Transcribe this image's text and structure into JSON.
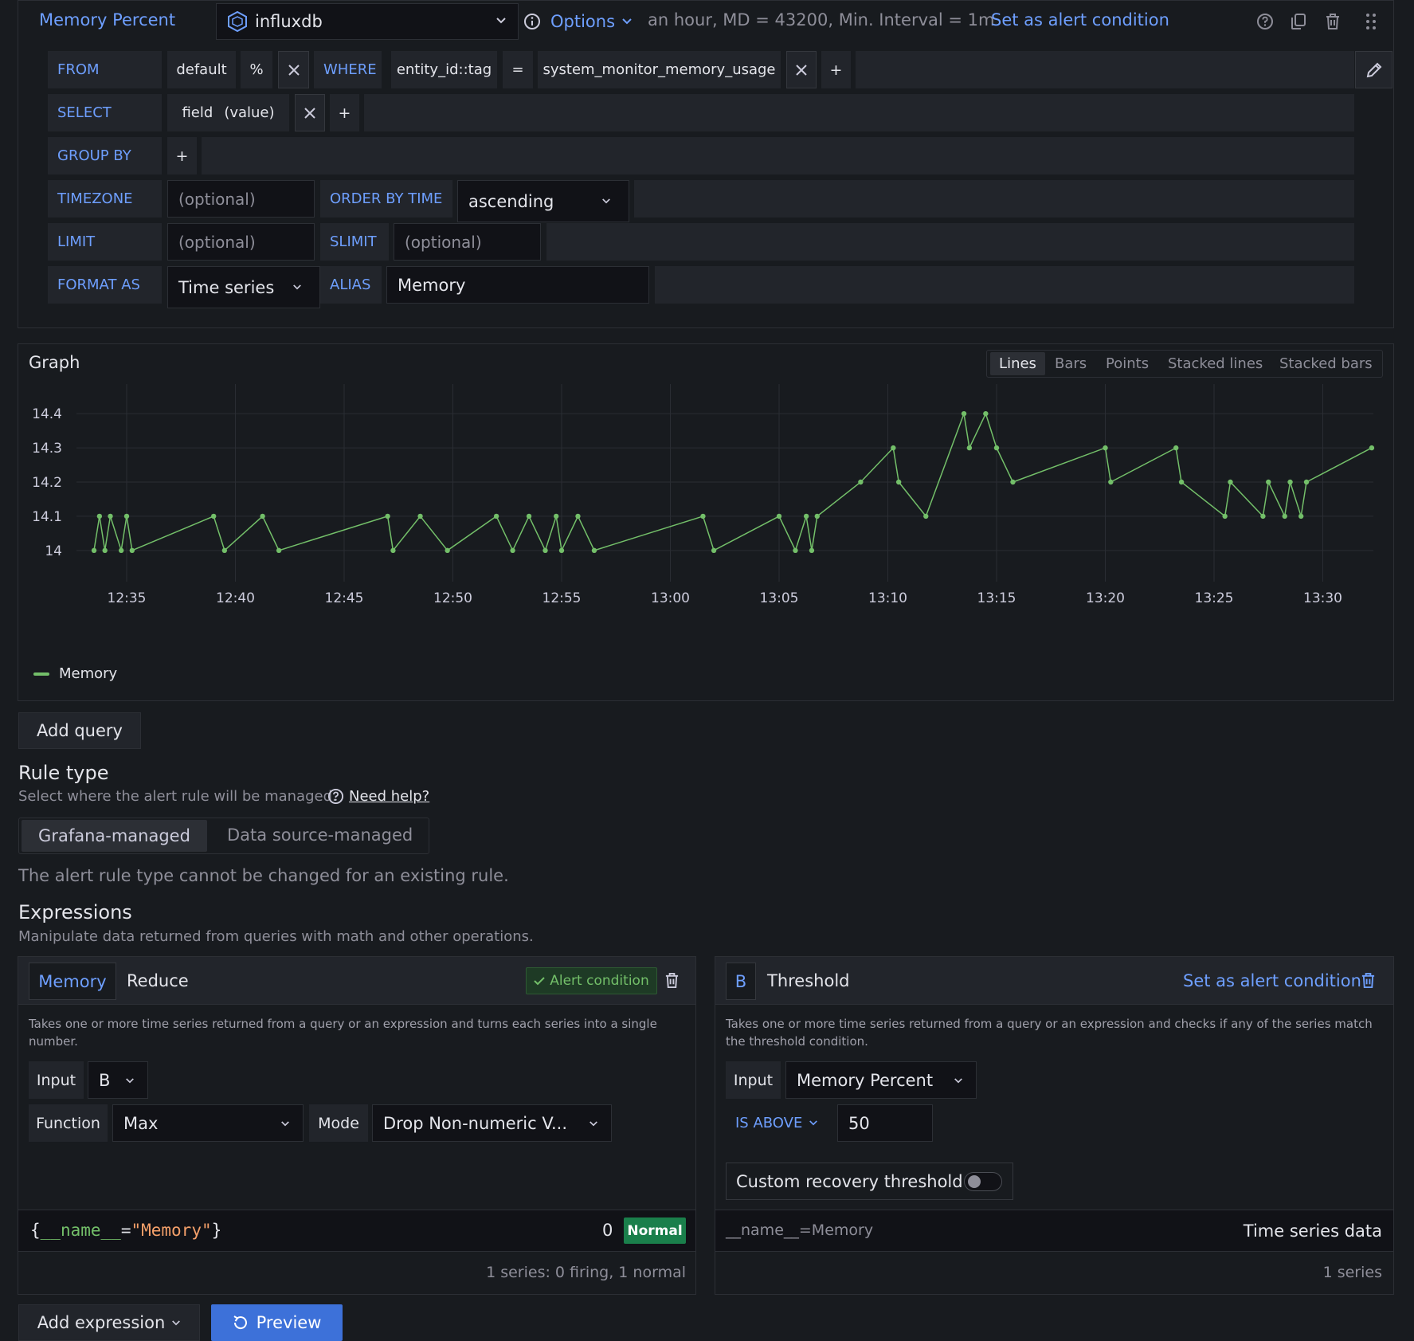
{
  "query": {
    "name": "Memory Percent",
    "datasource": "influxdb",
    "options_label": "Options",
    "options_summary": "an hour, MD = 43200, Min. Interval = 1m",
    "set_alert_label": "Set as alert condition",
    "from_label": "FROM",
    "from_policy": "default",
    "from_measurement": "%",
    "where_label": "WHERE",
    "where_key": "entity_id::tag",
    "where_op": "=",
    "where_value": "system_monitor_memory_usage",
    "plus": "+",
    "select_label": "SELECT",
    "select_field": "field",
    "select_value": "(value)",
    "groupby_label": "GROUP BY",
    "timezone_label": "TIMEZONE",
    "timezone_placeholder": "(optional)",
    "orderby_label": "ORDER BY TIME",
    "orderby_value": "ascending",
    "limit_label": "LIMIT",
    "limit_placeholder": "(optional)",
    "slimit_label": "SLIMIT",
    "slimit_placeholder": "(optional)",
    "format_label": "FORMAT AS",
    "format_value": "Time series",
    "alias_label": "ALIAS",
    "alias_value": "Memory"
  },
  "graph": {
    "title": "Graph",
    "modes": [
      "Lines",
      "Bars",
      "Points",
      "Stacked lines",
      "Stacked bars"
    ],
    "active_mode": "Lines",
    "legend": "Memory"
  },
  "chart_data": {
    "type": "line",
    "x_ticks": [
      "12:35",
      "12:40",
      "12:45",
      "12:50",
      "12:55",
      "13:00",
      "13:05",
      "13:10",
      "13:15",
      "13:20",
      "13:25",
      "13:30"
    ],
    "y_ticks": [
      "14",
      "14.1",
      "14.2",
      "14.3",
      "14.4"
    ],
    "ylim": [
      13.96,
      14.44
    ],
    "grid": true,
    "legend_position": "bottom-left",
    "series": [
      {
        "name": "Memory",
        "color": "#73bf69",
        "points": [
          [
            "12:33:30",
            14.0
          ],
          [
            "12:33:45",
            14.1
          ],
          [
            "12:34:00",
            14.0
          ],
          [
            "12:34:15",
            14.1
          ],
          [
            "12:34:45",
            14.0
          ],
          [
            "12:35:00",
            14.1
          ],
          [
            "12:35:15",
            14.0
          ],
          [
            "12:39:00",
            14.1
          ],
          [
            "12:39:30",
            14.0
          ],
          [
            "12:41:15",
            14.1
          ],
          [
            "12:42:00",
            14.0
          ],
          [
            "12:47:00",
            14.1
          ],
          [
            "12:47:15",
            14.0
          ],
          [
            "12:48:30",
            14.1
          ],
          [
            "12:49:45",
            14.0
          ],
          [
            "12:52:00",
            14.1
          ],
          [
            "12:52:45",
            14.0
          ],
          [
            "12:53:30",
            14.1
          ],
          [
            "12:54:15",
            14.0
          ],
          [
            "12:54:45",
            14.1
          ],
          [
            "12:55:00",
            14.0
          ],
          [
            "12:55:45",
            14.1
          ],
          [
            "12:56:30",
            14.0
          ],
          [
            "13:01:30",
            14.1
          ],
          [
            "13:02:00",
            14.0
          ],
          [
            "13:05:00",
            14.1
          ],
          [
            "13:05:45",
            14.0
          ],
          [
            "13:06:15",
            14.1
          ],
          [
            "13:06:30",
            14.0
          ],
          [
            "13:06:45",
            14.1
          ],
          [
            "13:08:45",
            14.2
          ],
          [
            "13:10:15",
            14.3
          ],
          [
            "13:10:30",
            14.2
          ],
          [
            "13:11:45",
            14.1
          ],
          [
            "13:13:30",
            14.4
          ],
          [
            "13:13:45",
            14.3
          ],
          [
            "13:14:30",
            14.4
          ],
          [
            "13:15:00",
            14.3
          ],
          [
            "13:15:45",
            14.2
          ],
          [
            "13:20:00",
            14.3
          ],
          [
            "13:20:15",
            14.2
          ],
          [
            "13:23:15",
            14.3
          ],
          [
            "13:23:30",
            14.2
          ],
          [
            "13:25:30",
            14.1
          ],
          [
            "13:25:45",
            14.2
          ],
          [
            "13:27:15",
            14.1
          ],
          [
            "13:27:30",
            14.2
          ],
          [
            "13:28:15",
            14.1
          ],
          [
            "13:28:30",
            14.2
          ],
          [
            "13:29:00",
            14.1
          ],
          [
            "13:29:15",
            14.2
          ],
          [
            "13:32:15",
            14.3
          ]
        ]
      }
    ]
  },
  "add_query_label": "Add query",
  "rule_type": {
    "title": "Rule type",
    "description": "Select where the alert rule will be managed.",
    "help_link": "Need help?",
    "options": [
      "Grafana-managed",
      "Data source-managed"
    ],
    "selected": "Grafana-managed",
    "note": "The alert rule type cannot be changed for an existing rule."
  },
  "expressions": {
    "title": "Expressions",
    "description": "Manipulate data returned from queries with math and other operations.",
    "reduce": {
      "ref": "Memory",
      "type": "Reduce",
      "alert_badge": "Alert condition",
      "description": "Takes one or more time series returned from a query or an expression and turns each series into a single number.",
      "input_label": "Input",
      "input_value": "B",
      "function_label": "Function",
      "function_value": "Max",
      "mode_label": "Mode",
      "mode_value": "Drop Non-numeric V...",
      "result_open": "{",
      "result_key": "__name__",
      "result_eq": "=",
      "result_val": "\"Memory\"",
      "result_close": "}",
      "result_value": "0",
      "result_state": "Normal",
      "summary": "1 series: 0 firing, 1 normal"
    },
    "threshold": {
      "ref": "B",
      "type": "Threshold",
      "set_alert_label": "Set as alert condition",
      "description": "Takes one or more time series returned from a query or an expression and checks if any of the series match the threshold condition.",
      "input_label": "Input",
      "input_value": "Memory Percent",
      "op_label": "IS ABOVE",
      "op_value": "50",
      "recovery_label": "Custom recovery threshold",
      "recovery_enabled": false,
      "result_label": "__name__=Memory",
      "result_value": "Time series data",
      "summary": "1 series"
    }
  },
  "footer": {
    "add_expression_label": "Add expression",
    "preview_label": "Preview"
  },
  "colors": {
    "accent": "#6e9fff",
    "primary_button": "#3d71d9",
    "series": "#73bf69",
    "normal_badge": "#1a7f4b"
  }
}
